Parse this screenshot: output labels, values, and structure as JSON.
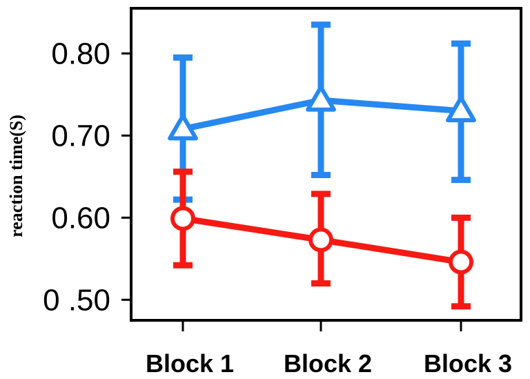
{
  "chart_data": {
    "type": "line",
    "title": "",
    "xlabel": "",
    "ylabel": "reaction time(S)",
    "categories": [
      "Block 1",
      "Block 2",
      "Block 3"
    ],
    "ylim": [
      0.475,
      0.855
    ],
    "yticks": [
      0.5,
      0.6,
      0.7,
      0.8
    ],
    "ytick_labels": [
      "0 .50",
      "0.60",
      "0.70",
      "0.80"
    ],
    "grid": false,
    "legend": "none",
    "series": [
      {
        "color": "#2688f0",
        "marker": "triangle",
        "values": [
          0.708,
          0.743,
          0.73
        ],
        "err_low": [
          0.622,
          0.652,
          0.646
        ],
        "err_high": [
          0.795,
          0.835,
          0.812
        ]
      },
      {
        "color": "#f51a14",
        "marker": "circle",
        "values": [
          0.599,
          0.573,
          0.546
        ],
        "err_low": [
          0.542,
          0.52,
          0.492
        ],
        "err_high": [
          0.656,
          0.629,
          0.6
        ]
      }
    ]
  }
}
